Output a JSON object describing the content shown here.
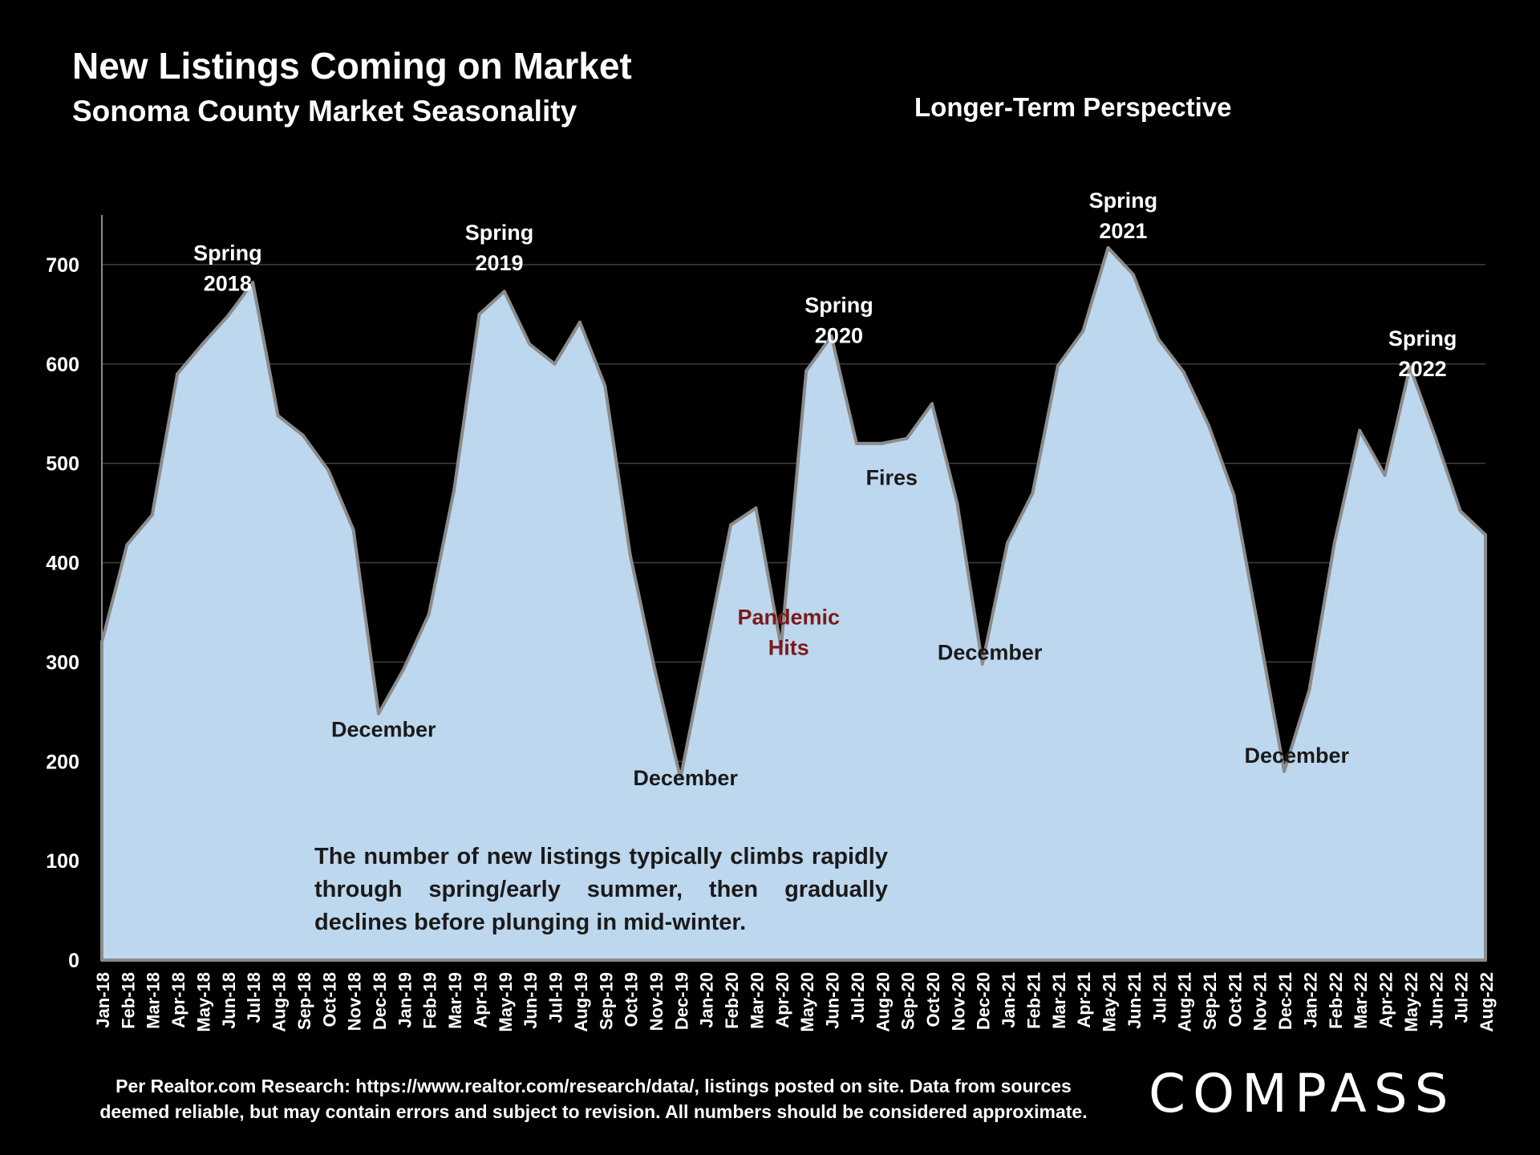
{
  "header": {
    "title": "New Listings Coming on Market",
    "subtitle": "Sonoma County Market Seasonality",
    "perspective": "Longer-Term Perspective"
  },
  "explanation": "The number of new listings typically climbs rapidly through spring/early summer, then gradually declines before plunging in mid-winter.",
  "footer": {
    "line1": "Per Realtor.com Research:  https://www.realtor.com/research/data/, listings posted on site. Data from sources",
    "line2": "deemed reliable, but may contain errors and subject to revision. All numbers should be considered approximate."
  },
  "logo": {
    "text": "COMPASS"
  },
  "colors": {
    "background": "#000000",
    "area_fill": "#bdd7ee",
    "area_stroke": "#8c8c8c",
    "gridline": "#404040",
    "text": "#ffffff",
    "dark_text": "#1a1a1a",
    "pandemic": "#7b1a1a"
  },
  "chart_data": {
    "type": "area",
    "title": "New Listings Coming on Market",
    "subtitle": "Sonoma County Market Seasonality",
    "xlabel": "",
    "ylabel": "",
    "ylim": [
      0,
      750
    ],
    "yticks": [
      0,
      100,
      200,
      300,
      400,
      500,
      600,
      700
    ],
    "grid": true,
    "categories": [
      "Jan-18",
      "Feb-18",
      "Mar-18",
      "Apr-18",
      "May-18",
      "Jun-18",
      "Jul-18",
      "Aug-18",
      "Sep-18",
      "Oct-18",
      "Nov-18",
      "Dec-18",
      "Jan-19",
      "Feb-19",
      "Mar-19",
      "Apr-19",
      "May-19",
      "Jun-19",
      "Jul-19",
      "Aug-19",
      "Sep-19",
      "Oct-19",
      "Nov-19",
      "Dec-19",
      "Jan-20",
      "Feb-20",
      "Mar-20",
      "Apr-20",
      "May-20",
      "Jun-20",
      "Jul-20",
      "Aug-20",
      "Sep-20",
      "Oct-20",
      "Nov-20",
      "Dec-20",
      "Jan-21",
      "Feb-21",
      "Mar-21",
      "Apr-21",
      "May-21",
      "Jun-21",
      "Jul-21",
      "Aug-21",
      "Sep-21",
      "Oct-21",
      "Nov-21",
      "Dec-21",
      "Jan-22",
      "Feb-22",
      "Mar-22",
      "Apr-22",
      "May-22",
      "Jun-22",
      "Jul-22",
      "Aug-22"
    ],
    "series": [
      {
        "name": "New Listings",
        "values": [
          320,
          418,
          448,
          590,
          620,
          648,
          682,
          548,
          528,
          493,
          433,
          248,
          293,
          348,
          473,
          650,
          673,
          620,
          600,
          642,
          578,
          408,
          290,
          183,
          310,
          438,
          455,
          315,
          593,
          628,
          520,
          520,
          525,
          560,
          460,
          298,
          420,
          470,
          598,
          633,
          717,
          690,
          625,
          592,
          538,
          468,
          330,
          190,
          272,
          420,
          533,
          488,
          597,
          527,
          452,
          428
        ]
      }
    ],
    "annotations": [
      {
        "index": 5,
        "line1": "Spring",
        "line2": "2018",
        "color": "#ffffff"
      },
      {
        "index": 15.8,
        "line1": "Spring",
        "line2": "2019",
        "color": "#ffffff"
      },
      {
        "index": 29.3,
        "line1": "Spring",
        "line2": "2020",
        "color": "#ffffff"
      },
      {
        "index": 40.6,
        "line1": "Spring",
        "line2": "2021",
        "color": "#ffffff"
      },
      {
        "index": 52.5,
        "line1": "Spring",
        "line2": "2022",
        "color": "#ffffff"
      },
      {
        "index": 11.2,
        "line1": "December",
        "line2": "",
        "color": "#1a1a1a"
      },
      {
        "index": 23.2,
        "line1": "December",
        "line2": "",
        "color": "#1a1a1a"
      },
      {
        "index": 35.3,
        "line1": "December",
        "line2": "",
        "color": "#1a1a1a"
      },
      {
        "index": 47.5,
        "line1": "December",
        "line2": "",
        "color": "#1a1a1a"
      },
      {
        "index": 27.3,
        "line1": "Pandemic",
        "line2": "Hits",
        "color": "#7b1a1a"
      },
      {
        "index": 31.4,
        "line1": "Fires",
        "line2": "",
        "color": "#1a1a1a"
      }
    ]
  }
}
